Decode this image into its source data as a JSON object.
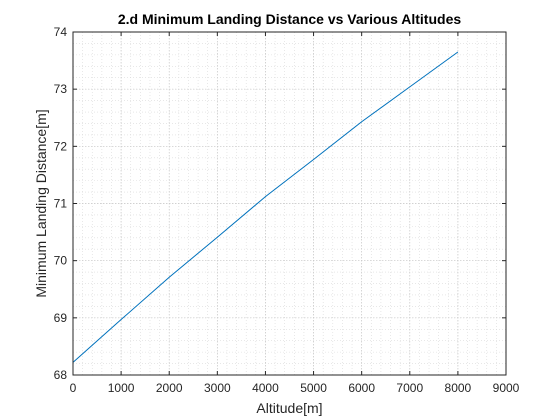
{
  "chart_data": {
    "type": "line",
    "title": "2.d Minimum Landing Distance vs Various Altitudes",
    "xlabel": "Altitude[m]",
    "ylabel": "Minimum Landing Distance[m]",
    "xlim": [
      0,
      9000
    ],
    "ylim": [
      68,
      74
    ],
    "xticks": [
      0,
      1000,
      2000,
      3000,
      4000,
      5000,
      6000,
      7000,
      8000,
      9000
    ],
    "yticks": [
      68,
      69,
      70,
      71,
      72,
      73,
      74
    ],
    "grid": true,
    "minor_grid": true,
    "series": [
      {
        "color": "#0072BD",
        "x": [
          0,
          1000,
          2000,
          3000,
          4000,
          5000,
          6000,
          7000,
          8000
        ],
        "y": [
          68.22,
          68.97,
          69.71,
          70.41,
          71.12,
          71.77,
          72.43,
          73.04,
          73.65
        ]
      }
    ]
  }
}
